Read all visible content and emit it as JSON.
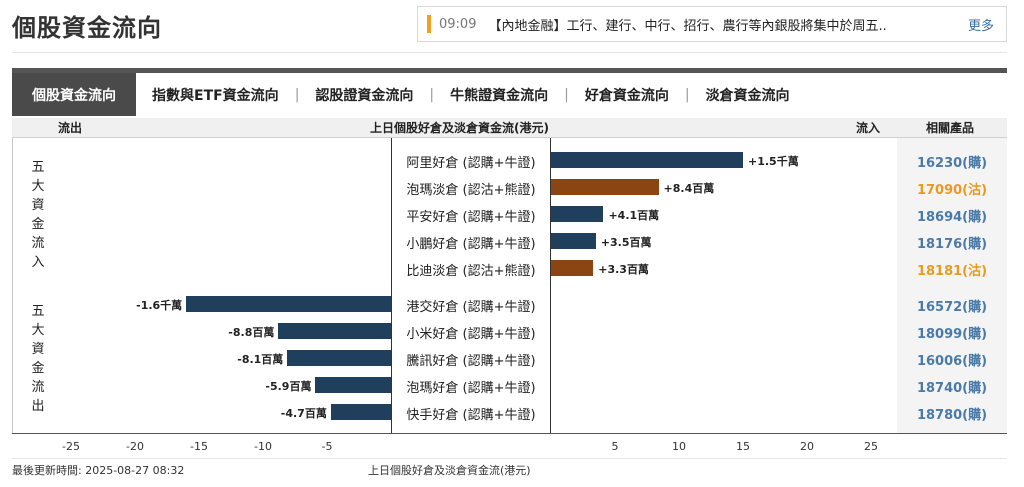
{
  "page_title": "個股資金流向",
  "news": {
    "time": "09:09",
    "text": "【內地金融】工行、建行、中行、招行、農行等內銀股將集中於周五...",
    "more_label": "更多"
  },
  "tabs": [
    {
      "label": "個股資金流向",
      "active": true
    },
    {
      "label": "指數與ETF資金流向",
      "active": false
    },
    {
      "label": "認股證資金流向",
      "active": false
    },
    {
      "label": "牛熊證資金流向",
      "active": false
    },
    {
      "label": "好倉資金流向",
      "active": false
    },
    {
      "label": "淡倉資金流向",
      "active": false
    }
  ],
  "tab_separator": "|",
  "headers": {
    "outflow": "流出",
    "title": "上日個股好倉及淡倉資金流(港元)",
    "inflow": "流入",
    "products": "相關產品"
  },
  "groups": {
    "inflow_label": [
      "五",
      "大",
      "資",
      "金",
      "流",
      "入"
    ],
    "outflow_label": [
      "五",
      "大",
      "資",
      "金",
      "流",
      "出"
    ]
  },
  "colors": {
    "bull_bar": "#1f3f5c",
    "bear_bar": "#8b4513",
    "bull_product": "#4a7aa8",
    "bear_product": "#e89b1f"
  },
  "chart_data": {
    "type": "bar",
    "orientation": "horizontal",
    "title": "上日個股好倉及淡倉資金流(港元)",
    "xlabel": "上日個股好倉及淡倉資金流(港元)",
    "xlim": [
      -30,
      30
    ],
    "xticks": [
      "-25",
      "-20",
      "-15",
      "-10",
      "-5",
      "5",
      "10",
      "15",
      "20",
      "25"
    ],
    "xtick_values": [
      -25,
      -20,
      -15,
      -10,
      -5,
      5,
      10,
      15,
      20,
      25
    ],
    "rows": [
      {
        "name": "阿里好倉 (認購+牛證)",
        "value": 15,
        "label": "+1.5千萬",
        "kind": "bull",
        "product": "16230(購)"
      },
      {
        "name": "泡瑪淡倉 (認沽+熊證)",
        "value": 8.4,
        "label": "+8.4百萬",
        "kind": "bear",
        "product": "17090(沽)"
      },
      {
        "name": "平安好倉 (認購+牛證)",
        "value": 4.1,
        "label": "+4.1百萬",
        "kind": "bull",
        "product": "18694(購)"
      },
      {
        "name": "小鵬好倉 (認購+牛證)",
        "value": 3.5,
        "label": "+3.5百萬",
        "kind": "bull",
        "product": "18176(購)"
      },
      {
        "name": "比迪淡倉 (認沽+熊證)",
        "value": 3.3,
        "label": "+3.3百萬",
        "kind": "bear",
        "product": "18181(沽)"
      },
      {
        "name": "港交好倉 (認購+牛證)",
        "value": -16,
        "label": "-1.6千萬",
        "kind": "bull",
        "product": "16572(購)"
      },
      {
        "name": "小米好倉 (認購+牛證)",
        "value": -8.8,
        "label": "-8.8百萬",
        "kind": "bull",
        "product": "18099(購)"
      },
      {
        "name": "騰訊好倉 (認購+牛證)",
        "value": -8.1,
        "label": "-8.1百萬",
        "kind": "bull",
        "product": "16006(購)"
      },
      {
        "name": "泡瑪好倉 (認購+牛證)",
        "value": -5.9,
        "label": "-5.9百萬",
        "kind": "bull",
        "product": "18740(購)"
      },
      {
        "name": "快手好倉 (認購+牛證)",
        "value": -4.7,
        "label": "-4.7百萬",
        "kind": "bull",
        "product": "18780(購)"
      }
    ]
  },
  "footer": {
    "updated": "最後更新時間: 2025-08-27 08:32",
    "caption": "上日個股好倉及淡倉資金流(港元)"
  }
}
